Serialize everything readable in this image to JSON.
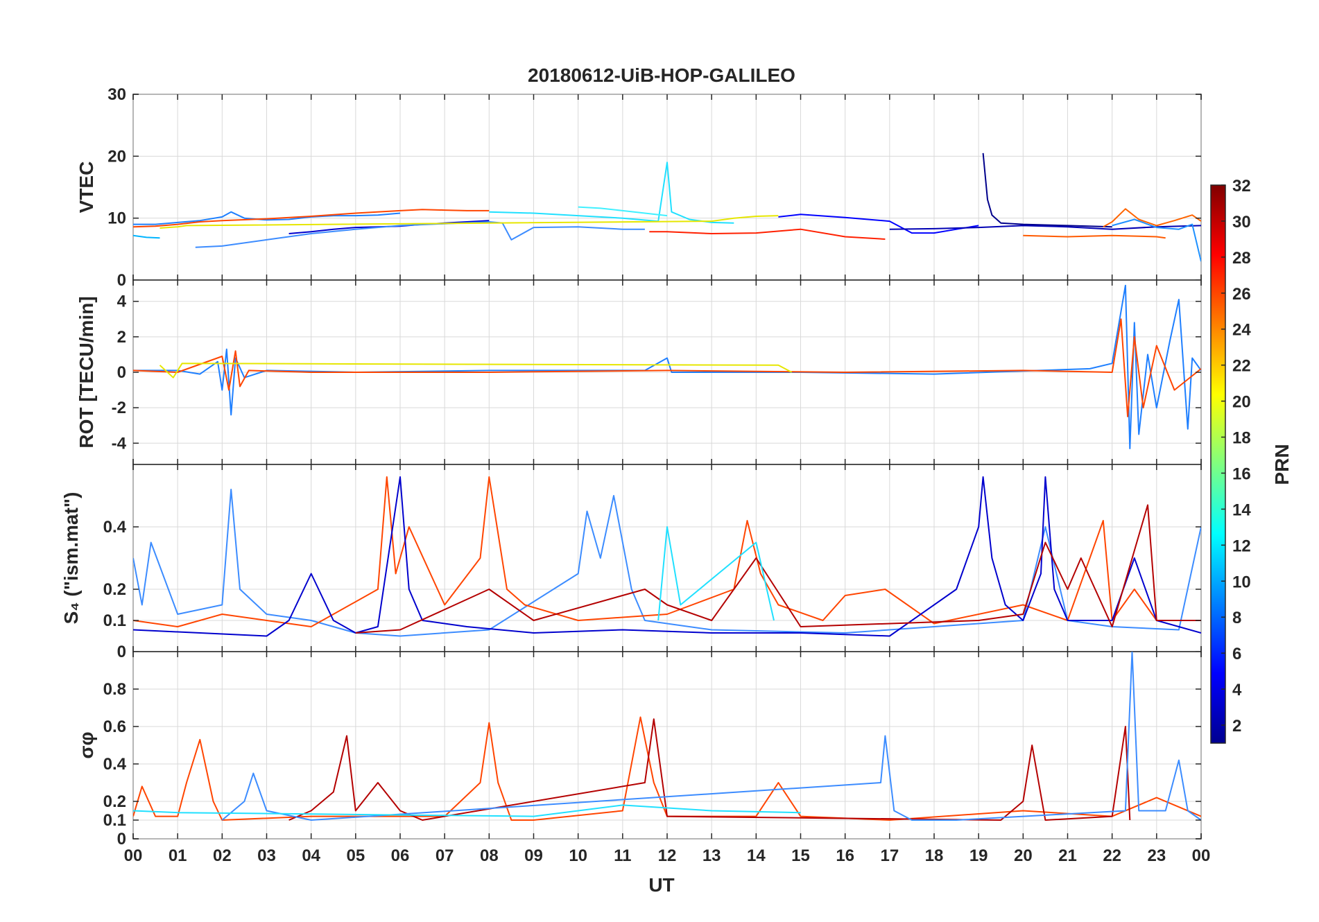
{
  "chart_data": {
    "type": "line",
    "title": "20180612-UiB-HOP-GALILEO",
    "xlabel": "UT",
    "xlim": [
      0,
      24
    ],
    "x_tick_labels": [
      "00",
      "01",
      "02",
      "03",
      "04",
      "05",
      "06",
      "07",
      "08",
      "09",
      "10",
      "11",
      "12",
      "13",
      "14",
      "15",
      "16",
      "17",
      "18",
      "19",
      "20",
      "21",
      "22",
      "23",
      "00"
    ],
    "colorbar": {
      "label": "PRN",
      "range": [
        1,
        32
      ],
      "tick_labels": [
        "2",
        "4",
        "6",
        "8",
        "10",
        "12",
        "14",
        "16",
        "18",
        "20",
        "22",
        "24",
        "26",
        "28",
        "30",
        "32"
      ],
      "colormap": "jet"
    },
    "panels": [
      {
        "ylabel": "VTEC",
        "ylim": [
          0,
          30
        ],
        "y_ticks": [
          0,
          10,
          20,
          30
        ],
        "grid": true,
        "series": [
          {
            "prn": 7,
            "color": "#1e7fff",
            "x": [
              0,
              0.5,
              1.0,
              1.5,
              2.0,
              2.2,
              2.5,
              3.0,
              3.5,
              4.0,
              4.5,
              5.0,
              5.5,
              6.0
            ],
            "y": [
              9.0,
              9.0,
              9.3,
              9.6,
              10.2,
              11.0,
              10.0,
              9.7,
              9.8,
              10.2,
              10.4,
              10.4,
              10.5,
              10.8
            ]
          },
          {
            "prn": 3,
            "color": "#0000cd",
            "x": [
              3.5,
              4.0,
              4.5,
              5.0,
              5.5,
              6.0,
              6.5,
              7.0,
              7.5,
              8.0
            ],
            "y": [
              7.5,
              7.8,
              8.2,
              8.5,
              8.6,
              8.7,
              9.0,
              9.2,
              9.4,
              9.6
            ]
          },
          {
            "prn": 26,
            "color": "#ff4500",
            "x": [
              0,
              0.5,
              1.0,
              1.5,
              2.0,
              3.0,
              4.0,
              5.0,
              6.0,
              6.5,
              7.0,
              7.5,
              8.0
            ],
            "y": [
              8.6,
              8.7,
              9.0,
              9.4,
              9.6,
              9.9,
              10.3,
              10.8,
              11.2,
              11.4,
              11.3,
              11.2,
              11.2
            ]
          },
          {
            "prn": 11,
            "color": "#00b4ff",
            "x": [
              0,
              0.3,
              0.6
            ],
            "y": [
              7.2,
              6.9,
              6.8
            ]
          },
          {
            "prn": 9,
            "color": "#3c8cff",
            "x": [
              1.4,
              2.0,
              3.0,
              4.0,
              5.0,
              6.0,
              7.0,
              8.0,
              8.3,
              8.5,
              9.0,
              10.0,
              11.0,
              11.5
            ],
            "y": [
              5.3,
              5.5,
              6.5,
              7.5,
              8.2,
              8.8,
              9.1,
              9.4,
              9.2,
              6.5,
              8.5,
              8.6,
              8.2,
              8.2
            ]
          },
          {
            "prn": 12,
            "color": "#20e0ff",
            "x": [
              8.0,
              9.0,
              10.0,
              11.0,
              11.8,
              12.0,
              12.1,
              12.5,
              13.0,
              13.5
            ],
            "y": [
              11.0,
              10.8,
              10.4,
              10.0,
              9.5,
              19.0,
              11.0,
              9.8,
              9.3,
              9.2
            ]
          },
          {
            "prn": 13,
            "color": "#40f0ff",
            "x": [
              10.0,
              10.5,
              11.0,
              11.5,
              12.0
            ],
            "y": [
              11.8,
              11.6,
              11.2,
              10.8,
              10.4
            ]
          },
          {
            "prn": 20,
            "color": "#e6e600",
            "x": [
              0.6,
              1.0,
              1.2,
              13.0,
              13.5,
              14.0,
              14.5
            ],
            "y": [
              8.4,
              8.6,
              8.8,
              9.5,
              10.0,
              10.3,
              10.4
            ]
          },
          {
            "prn": 28,
            "color": "#ff2000",
            "x": [
              11.6,
              12.0,
              13.0,
              14.0,
              15.0,
              16.0,
              16.9
            ],
            "y": [
              7.8,
              7.8,
              7.5,
              7.6,
              8.2,
              7.0,
              6.6
            ]
          },
          {
            "prn": 5,
            "color": "#0000ff",
            "x": [
              14.5,
              15.0,
              16.0,
              17.0,
              17.5,
              18.0,
              18.5,
              19.0
            ],
            "y": [
              10.2,
              10.6,
              10.1,
              9.5,
              7.6,
              7.6,
              8.2,
              8.8
            ]
          },
          {
            "prn": 2,
            "color": "#00008b",
            "x": [
              19.1,
              19.2,
              19.3,
              19.5,
              20.0,
              21.0,
              22.0
            ],
            "y": [
              20.5,
              13.0,
              10.5,
              9.2,
              9.0,
              8.8,
              8.6
            ]
          },
          {
            "prn": 4,
            "color": "#0000b4",
            "x": [
              17.0,
              18.0,
              19.0,
              20.0,
              21.0,
              22.0,
              23.0,
              24.0
            ],
            "y": [
              8.2,
              8.3,
              8.5,
              8.8,
              8.6,
              8.2,
              8.6,
              8.8
            ]
          },
          {
            "prn": 24,
            "color": "#ff6400",
            "x": [
              21.8,
              22.0,
              22.3,
              22.6,
              23.0,
              23.4,
              23.8,
              24.0
            ],
            "y": [
              8.6,
              9.4,
              11.5,
              9.8,
              8.8,
              9.6,
              10.5,
              9.5
            ]
          },
          {
            "prn": 25,
            "color": "#ff5a00",
            "x": [
              20.0,
              21.0,
              22.0,
              23.0,
              23.2
            ],
            "y": [
              7.2,
              7.0,
              7.2,
              7.0,
              6.8
            ]
          },
          {
            "prn": 10,
            "color": "#1e90ff",
            "x": [
              22.0,
              22.5,
              23.0,
              23.5,
              23.8,
              24.0
            ],
            "y": [
              8.8,
              9.8,
              8.5,
              8.2,
              9.0,
              3.0
            ]
          }
        ]
      },
      {
        "ylabel": "ROT [TECU/min]",
        "ylim": [
          -5.2,
          5.2
        ],
        "y_ticks": [
          -4,
          -2,
          0,
          2,
          4
        ],
        "grid": true,
        "series": [
          {
            "prn": 7,
            "color": "#1e7fff",
            "x": [
              0,
              1.0,
              1.5,
              1.9,
              2.0,
              2.1,
              2.2,
              2.3,
              2.5,
              3.0,
              5.0,
              8.0,
              11.5,
              12.0,
              12.1,
              15.0,
              18.0,
              21.5,
              22.0,
              22.3,
              22.4,
              22.5,
              22.6,
              22.8,
              23.0,
              23.3,
              23.5,
              23.7,
              23.8,
              24.0
            ],
            "y": [
              0.1,
              0.1,
              -0.1,
              0.6,
              -1.0,
              1.3,
              -2.4,
              0.8,
              -0.3,
              0.1,
              0.0,
              0.1,
              0.1,
              0.8,
              0.0,
              0.0,
              -0.1,
              0.2,
              0.5,
              4.9,
              -4.3,
              2.8,
              -3.5,
              1.0,
              -2.0,
              1.8,
              4.1,
              -3.2,
              0.8,
              0.1
            ]
          },
          {
            "prn": 26,
            "color": "#ff4500",
            "x": [
              0,
              1.0,
              2.0,
              2.15,
              2.3,
              2.4,
              2.6,
              4.0,
              8.0,
              12.0,
              16.0,
              20.0,
              22.0,
              22.2,
              22.35,
              22.5,
              22.7,
              23.0,
              23.4,
              24.0
            ],
            "y": [
              0.1,
              0.0,
              0.9,
              -1.0,
              1.2,
              -0.8,
              0.1,
              0.0,
              0.0,
              0.1,
              0.0,
              0.1,
              0.0,
              3.0,
              -2.5,
              2.0,
              -2.0,
              1.5,
              -1.0,
              0.2
            ]
          },
          {
            "prn": 20,
            "color": "#e6e600",
            "x": [
              0.6,
              0.9,
              1.1,
              14.5,
              14.8
            ],
            "y": [
              0.4,
              -0.3,
              0.5,
              0.4,
              0.0
            ]
          }
        ]
      },
      {
        "ylabel": "S₄ (\"ism.mat\")",
        "ylim": [
          0,
          0.6
        ],
        "y_ticks": [
          0,
          0.1,
          0.2,
          0.4
        ],
        "grid": true,
        "series": [
          {
            "prn": 9,
            "color": "#3c8cff",
            "x": [
              0,
              0.2,
              0.4,
              1.0,
              2.0,
              2.2,
              2.4,
              3.0,
              4.0,
              4.5,
              5.0,
              6.0,
              8.0,
              10.0,
              10.2,
              10.5,
              10.8,
              11.2,
              11.5,
              13.0,
              16.0,
              17.0,
              18.0,
              20.0,
              20.5,
              21.0,
              22.0,
              23.5,
              24.0
            ],
            "y": [
              0.3,
              0.15,
              0.35,
              0.12,
              0.15,
              0.52,
              0.2,
              0.12,
              0.1,
              0.08,
              0.06,
              0.05,
              0.07,
              0.25,
              0.45,
              0.3,
              0.5,
              0.2,
              0.1,
              0.07,
              0.06,
              0.07,
              0.08,
              0.1,
              0.4,
              0.1,
              0.08,
              0.07,
              0.4
            ]
          },
          {
            "prn": 26,
            "color": "#ff4500",
            "x": [
              0,
              1.0,
              2.0,
              4.0,
              5.5,
              5.7,
              5.9,
              6.2,
              7.0,
              7.8,
              8.0,
              8.4,
              8.8,
              10.0,
              12.0,
              13.5,
              13.8,
              14.1,
              14.5,
              15.5,
              16.0,
              16.9,
              18.0,
              20.0,
              21.0,
              21.8,
              22.0,
              22.5,
              23.0,
              24.0
            ],
            "y": [
              0.1,
              0.08,
              0.12,
              0.08,
              0.2,
              0.56,
              0.25,
              0.4,
              0.15,
              0.3,
              0.56,
              0.2,
              0.15,
              0.1,
              0.12,
              0.2,
              0.42,
              0.25,
              0.15,
              0.1,
              0.18,
              0.2,
              0.09,
              0.15,
              0.1,
              0.42,
              0.1,
              0.2,
              0.1,
              0.1
            ]
          },
          {
            "prn": 3,
            "color": "#0000cd",
            "x": [
              0,
              3.0,
              3.5,
              4.0,
              4.5,
              5.0,
              5.5,
              6.0,
              6.2,
              6.5,
              7.5,
              9.0,
              11.0,
              13.0,
              15.0,
              17.0,
              18.5,
              19.0,
              19.1,
              19.3,
              19.6,
              20.0,
              20.4,
              20.5,
              20.7,
              21.0,
              22.0,
              22.5,
              23.0,
              24.0
            ],
            "y": [
              0.07,
              0.05,
              0.1,
              0.25,
              0.1,
              0.06,
              0.08,
              0.56,
              0.2,
              0.1,
              0.08,
              0.06,
              0.07,
              0.06,
              0.06,
              0.05,
              0.2,
              0.4,
              0.56,
              0.3,
              0.15,
              0.1,
              0.25,
              0.56,
              0.2,
              0.1,
              0.1,
              0.3,
              0.1,
              0.06
            ]
          },
          {
            "prn": 30,
            "color": "#b40000",
            "x": [
              5.0,
              6.0,
              8.0,
              9.0,
              11.5,
              12.0,
              13.0,
              14.0,
              15.0,
              19.0,
              20.0,
              20.5,
              21.0,
              21.3,
              22.0,
              22.8,
              23.0,
              24.0
            ],
            "y": [
              0.06,
              0.07,
              0.2,
              0.1,
              0.2,
              0.15,
              0.1,
              0.3,
              0.08,
              0.1,
              0.12,
              0.35,
              0.2,
              0.3,
              0.08,
              0.47,
              0.1,
              0.1
            ]
          },
          {
            "prn": 12,
            "color": "#20e0ff",
            "x": [
              11.8,
              12.0,
              12.3,
              14.0,
              14.4
            ],
            "y": [
              0.1,
              0.4,
              0.15,
              0.35,
              0.1
            ]
          }
        ]
      },
      {
        "ylabel": "σφ",
        "ylim": [
          0,
          1
        ],
        "y_ticks": [
          0,
          0.1,
          0.2,
          0.4,
          0.6,
          0.8
        ],
        "grid": true,
        "series": [
          {
            "prn": 26,
            "color": "#ff4500",
            "x": [
              0,
              0.2,
              0.5,
              1.0,
              1.2,
              1.5,
              1.8,
              2.0,
              4.0,
              7.0,
              7.8,
              8.0,
              8.2,
              8.5,
              9.0,
              11.0,
              11.4,
              11.7,
              12.0,
              14.0,
              14.5,
              15.0,
              17.0,
              20.0,
              22.0,
              23.0,
              24.0
            ],
            "y": [
              0.12,
              0.28,
              0.12,
              0.12,
              0.3,
              0.53,
              0.2,
              0.1,
              0.12,
              0.12,
              0.3,
              0.62,
              0.3,
              0.1,
              0.1,
              0.15,
              0.65,
              0.3,
              0.12,
              0.12,
              0.3,
              0.12,
              0.1,
              0.15,
              0.12,
              0.22,
              0.12
            ]
          },
          {
            "prn": 30,
            "color": "#b40000",
            "x": [
              3.5,
              4.0,
              4.5,
              4.8,
              5.0,
              5.5,
              6.0,
              6.5,
              11.5,
              11.7,
              12.0,
              19.5,
              20.0,
              20.2,
              20.5,
              22.0,
              22.3,
              22.4
            ],
            "y": [
              0.1,
              0.15,
              0.25,
              0.55,
              0.15,
              0.3,
              0.15,
              0.1,
              0.3,
              0.64,
              0.12,
              0.1,
              0.2,
              0.5,
              0.1,
              0.12,
              0.6,
              0.1
            ]
          },
          {
            "prn": 9,
            "color": "#3c8cff",
            "x": [
              2.0,
              2.5,
              2.7,
              3.0,
              4.0,
              16.8,
              16.9,
              17.1,
              17.5,
              18.5,
              22.3,
              22.45,
              22.6,
              23.2,
              23.5,
              23.7,
              24.0
            ],
            "y": [
              0.1,
              0.2,
              0.35,
              0.15,
              0.1,
              0.3,
              0.55,
              0.15,
              0.1,
              0.1,
              0.15,
              1.0,
              0.15,
              0.15,
              0.42,
              0.15,
              0.1
            ]
          },
          {
            "prn": 12,
            "color": "#20e0ff",
            "x": [
              0,
              1.0,
              9.0,
              10.0,
              11.0,
              13.0,
              15.0
            ],
            "y": [
              0.15,
              0.14,
              0.12,
              0.15,
              0.18,
              0.15,
              0.14
            ]
          }
        ]
      }
    ]
  }
}
